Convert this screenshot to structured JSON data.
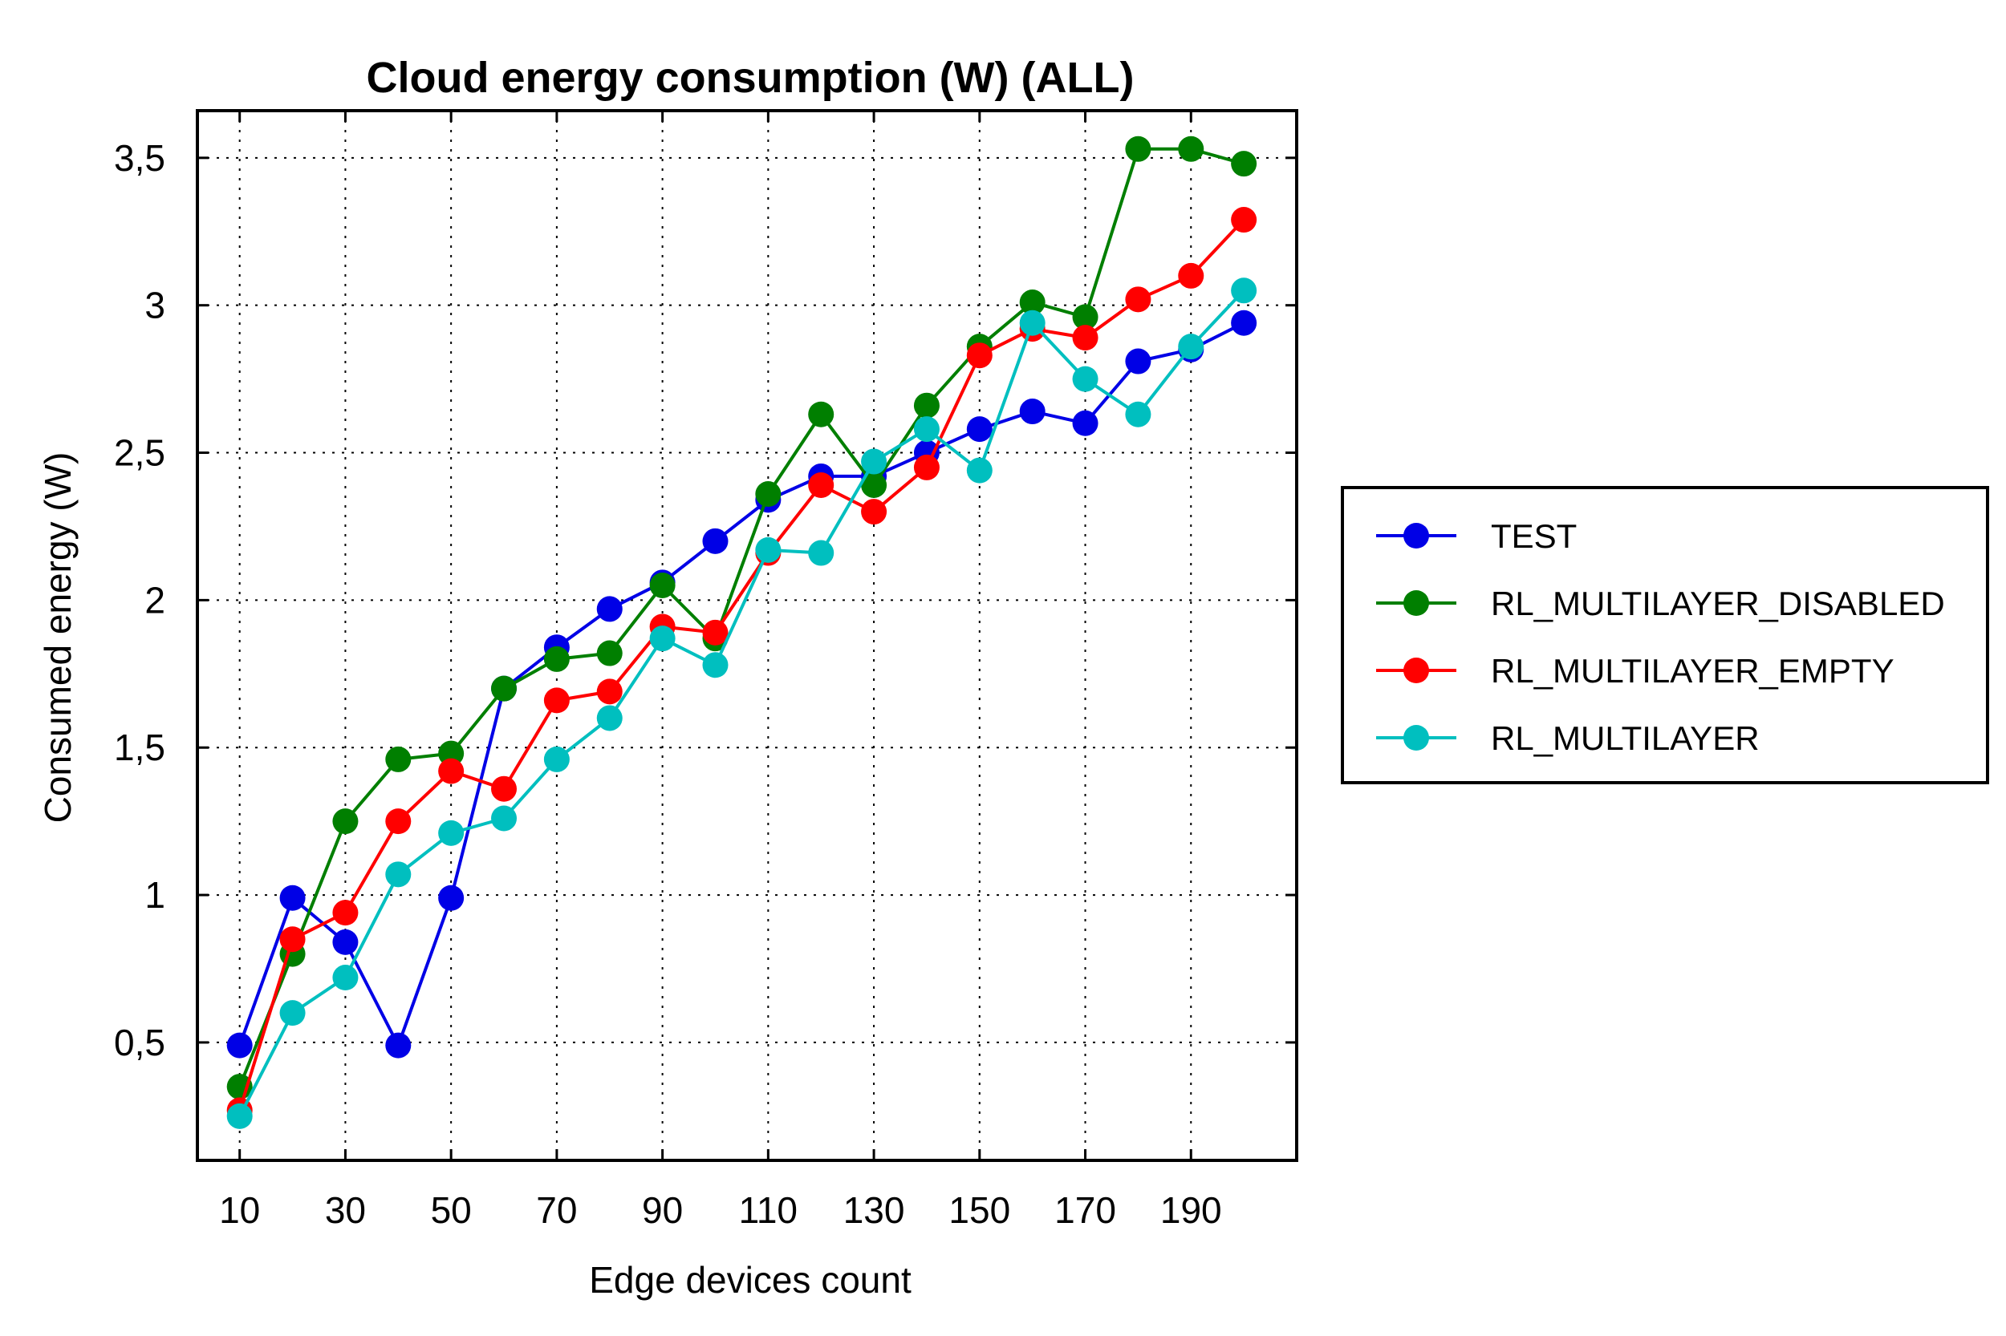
{
  "chart_data": {
    "type": "line",
    "title": "Cloud energy consumption (W) (ALL)",
    "xlabel": "Edge devices count",
    "ylabel": "Consumed energy (W)",
    "x": [
      10,
      20,
      30,
      40,
      50,
      60,
      70,
      80,
      90,
      100,
      110,
      120,
      130,
      140,
      150,
      160,
      170,
      180,
      190,
      200
    ],
    "xlim": [
      2,
      210
    ],
    "ylim": [
      0.1,
      3.66
    ],
    "xticks": [
      10,
      30,
      50,
      70,
      90,
      110,
      130,
      150,
      170,
      190
    ],
    "xtick_labels": [
      "10",
      "30",
      "50",
      "70",
      "90",
      "110",
      "130",
      "150",
      "170",
      "190"
    ],
    "yticks": [
      0.5,
      1,
      1.5,
      2,
      2.5,
      3,
      3.5
    ],
    "ytick_labels": [
      "0,5",
      "1",
      "1,5",
      "2",
      "2,5",
      "3",
      "3,5"
    ],
    "grid": true,
    "legend_position": "outside-right",
    "series": [
      {
        "name": "TEST",
        "color": "#0000e6",
        "values": [
          0.49,
          0.99,
          0.84,
          0.49,
          0.99,
          1.7,
          1.84,
          1.97,
          2.06,
          2.2,
          2.34,
          2.42,
          2.42,
          2.5,
          2.58,
          2.64,
          2.6,
          2.81,
          2.85,
          2.94
        ]
      },
      {
        "name": "RL_MULTILAYER_DISABLED",
        "color": "#007f00",
        "values": [
          0.35,
          0.8,
          1.25,
          1.46,
          1.48,
          1.7,
          1.8,
          1.82,
          2.05,
          1.87,
          2.36,
          2.63,
          2.39,
          2.66,
          2.86,
          3.01,
          2.96,
          3.53,
          3.53,
          3.48
        ]
      },
      {
        "name": "RL_MULTILAYER_EMPTY",
        "color": "#ff0000",
        "values": [
          0.27,
          0.85,
          0.94,
          1.25,
          1.42,
          1.36,
          1.66,
          1.69,
          1.91,
          1.89,
          2.16,
          2.39,
          2.3,
          2.45,
          2.83,
          2.92,
          2.89,
          3.02,
          3.1,
          3.29
        ]
      },
      {
        "name": "RL_MULTILAYER",
        "color": "#00bfbf",
        "values": [
          0.25,
          0.6,
          0.72,
          1.07,
          1.21,
          1.26,
          1.46,
          1.6,
          1.87,
          1.78,
          2.17,
          2.16,
          2.47,
          2.58,
          2.44,
          2.94,
          2.75,
          2.63,
          2.86,
          3.05
        ]
      }
    ]
  }
}
